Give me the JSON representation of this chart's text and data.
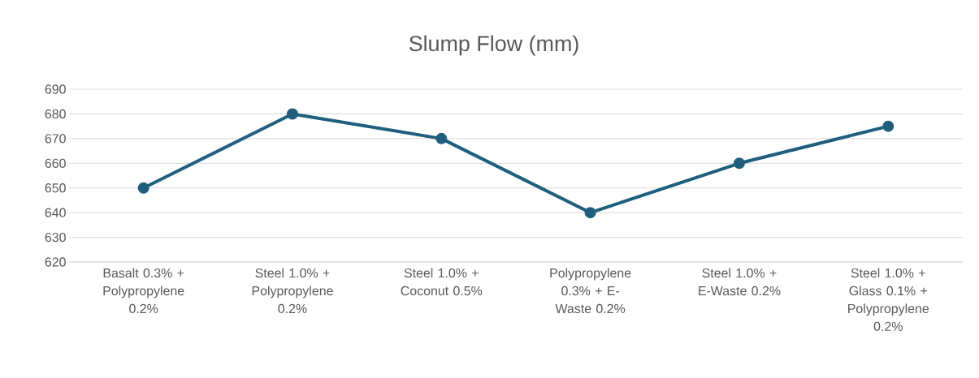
{
  "chart_data": {
    "type": "line",
    "title": "Slump Flow (mm)",
    "categories": [
      "Basalt 0.3% + Polypropylene 0.2%",
      "Steel 1.0% + Polypropylene 0.2%",
      "Steel 1.0% + Coconut 0.5%",
      "Polypropylene 0.3% + E-Waste 0.2%",
      "Steel 1.0% + E-Waste 0.2%",
      "Steel 1.0% + Glass 0.1% + Polypropylene 0.2%"
    ],
    "values": [
      650,
      680,
      670,
      640,
      660,
      675
    ],
    "color": "#1f5f7e",
    "marker": "circle",
    "line_style": "solid",
    "ylim": [
      620,
      690
    ],
    "yticks": [
      620,
      630,
      640,
      650,
      660,
      670,
      680,
      690
    ],
    "grid": "y"
  }
}
